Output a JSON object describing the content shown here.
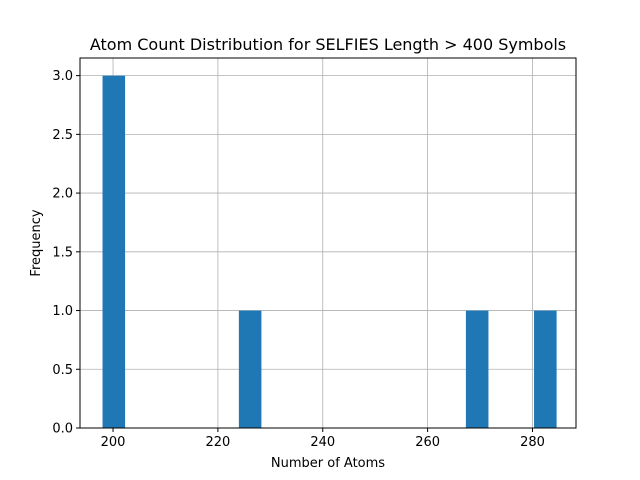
{
  "colors": {
    "bar": "#1f77b4",
    "grid": "#b0b0b0",
    "axis": "#000000"
  },
  "chart_data": {
    "type": "bar",
    "title": "Atom Count Distribution for SELFIES Length > 400 Symbols",
    "xlabel": "Number of Atoms",
    "ylabel": "Frequency",
    "xlim": [
      193.7,
      288.3
    ],
    "ylim": [
      0,
      3.15
    ],
    "x_ticks": [
      200,
      220,
      240,
      260,
      280
    ],
    "x_tick_labels": [
      "200",
      "220",
      "240",
      "260",
      "280"
    ],
    "y_ticks": [
      0,
      0.5,
      1,
      1.5,
      2,
      2.5,
      3
    ],
    "y_tick_labels": [
      "0.0",
      "0.5",
      "1.0",
      "1.5",
      "2.0",
      "2.5",
      "3.0"
    ],
    "grid": true,
    "bins": [
      {
        "x_start": 198,
        "x_end": 202.3,
        "value": 3
      },
      {
        "x_start": 224,
        "x_end": 228.3,
        "value": 1
      },
      {
        "x_start": 267.3,
        "x_end": 271.6,
        "value": 1
      },
      {
        "x_start": 280.3,
        "x_end": 284.6,
        "value": 1
      }
    ]
  }
}
